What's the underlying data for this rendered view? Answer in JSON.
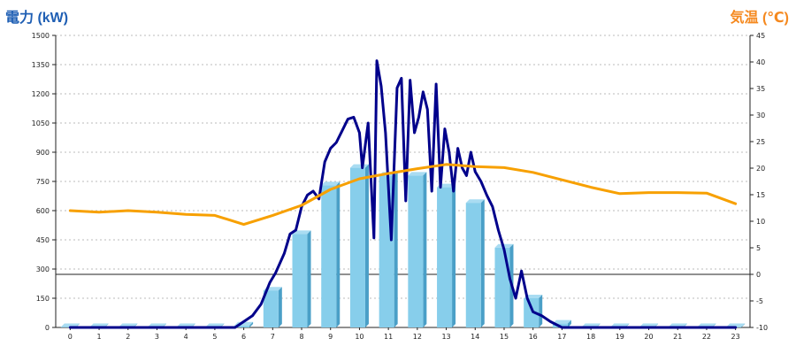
{
  "chart_data": {
    "type": "bar",
    "title": "",
    "y_left_label": "電力 (kW)",
    "y_right_label": "気温 (℃)",
    "categories": [
      "0",
      "1",
      "2",
      "3",
      "4",
      "5",
      "6",
      "7",
      "8",
      "9",
      "10",
      "11",
      "12",
      "13",
      "14",
      "15",
      "16",
      "17",
      "18",
      "19",
      "20",
      "21",
      "22",
      "23"
    ],
    "ylim_left": [
      0,
      1500
    ],
    "ylim_right": [
      -10,
      45
    ],
    "y_left_ticks": [
      0,
      150,
      300,
      450,
      600,
      750,
      900,
      1050,
      1200,
      1350,
      1500
    ],
    "y_right_ticks": [
      -10,
      -5,
      0,
      5,
      10,
      15,
      20,
      25,
      30,
      35,
      40,
      45
    ],
    "grid": true,
    "series": [
      {
        "kind": "bar",
        "axis": "left",
        "color": "#87ceeb",
        "values": [
          2,
          2,
          2,
          2,
          2,
          2,
          10,
          190,
          480,
          730,
          820,
          780,
          780,
          720,
          640,
          410,
          150,
          20,
          2,
          2,
          2,
          2,
          2,
          2
        ]
      },
      {
        "kind": "line",
        "axis": "left",
        "color": "#00008b",
        "x": [
          0,
          1,
          2,
          3,
          4,
          5,
          5.7,
          6,
          6.3,
          6.6,
          6.9,
          7.1,
          7.4,
          7.6,
          7.8,
          8,
          8.2,
          8.4,
          8.6,
          8.8,
          9,
          9.2,
          9.4,
          9.6,
          9.8,
          10,
          10.1,
          10.3,
          10.5,
          10.6,
          10.75,
          10.9,
          11.1,
          11.3,
          11.45,
          11.6,
          11.75,
          11.9,
          12.05,
          12.2,
          12.35,
          12.5,
          12.65,
          12.8,
          12.95,
          13.1,
          13.25,
          13.4,
          13.55,
          13.7,
          13.85,
          14,
          14.2,
          14.4,
          14.6,
          14.8,
          15,
          15.2,
          15.4,
          15.6,
          15.8,
          16,
          16.3,
          16.6,
          17,
          18,
          19,
          20,
          21,
          22,
          23
        ],
        "values": [
          0,
          0,
          0,
          0,
          0,
          0,
          0,
          30,
          60,
          120,
          230,
          280,
          380,
          480,
          500,
          620,
          680,
          700,
          660,
          850,
          920,
          950,
          1010,
          1070,
          1080,
          1000,
          820,
          1050,
          460,
          1370,
          1240,
          1000,
          450,
          1230,
          1280,
          650,
          1270,
          1000,
          1080,
          1210,
          1120,
          700,
          1250,
          720,
          1020,
          900,
          700,
          920,
          820,
          780,
          900,
          800,
          750,
          680,
          620,
          500,
          400,
          250,
          150,
          290,
          150,
          80,
          60,
          30,
          0,
          0,
          0,
          0,
          0,
          0,
          0
        ]
      },
      {
        "kind": "line",
        "axis": "right",
        "color": "#f7a000",
        "values": [
          12,
          11.7,
          12,
          11.7,
          11.3,
          11.1,
          9.4,
          11.1,
          13,
          16,
          18,
          19,
          19.9,
          20.7,
          20.3,
          20.1,
          19.2,
          17.8,
          16.4,
          15.2,
          15.4,
          15.4,
          15.3,
          13.3
        ]
      }
    ]
  }
}
